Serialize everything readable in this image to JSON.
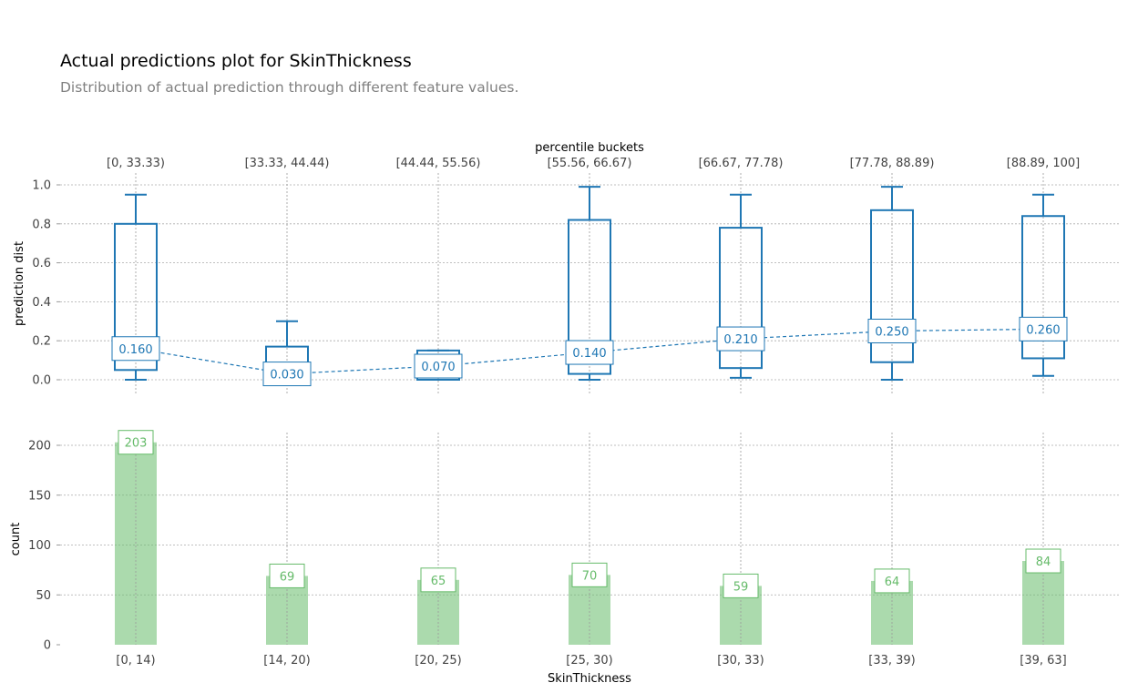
{
  "title": "Actual predictions plot for SkinThickness",
  "subtitle": "Distribution of actual prediction through different feature values.",
  "chart_data": [
    {
      "type": "box",
      "top_xlabel": "percentile buckets",
      "ylabel": "prediction dist",
      "ylim": [
        -0.05,
        1.05
      ],
      "yticks": [
        0.0,
        0.2,
        0.4,
        0.6,
        0.8,
        1.0
      ],
      "categories": [
        "[0, 33.33)",
        "[33.33, 44.44)",
        "[44.44, 55.56)",
        "[55.56, 66.67)",
        "[66.67, 77.78)",
        "[77.78, 88.89)",
        "[88.89, 100]"
      ],
      "boxes": [
        {
          "whislo": 0.0,
          "q1": 0.05,
          "med": 0.16,
          "q3": 0.8,
          "whishi": 0.95
        },
        {
          "whislo": 0.0,
          "q1": 0.0,
          "med": 0.03,
          "q3": 0.17,
          "whishi": 0.3
        },
        {
          "whislo": 0.0,
          "q1": 0.0,
          "med": 0.07,
          "q3": 0.15,
          "whishi": 0.15
        },
        {
          "whislo": 0.0,
          "q1": 0.03,
          "med": 0.14,
          "q3": 0.82,
          "whishi": 0.99
        },
        {
          "whislo": 0.01,
          "q1": 0.06,
          "med": 0.21,
          "q3": 0.78,
          "whishi": 0.95
        },
        {
          "whislo": 0.0,
          "q1": 0.09,
          "med": 0.25,
          "q3": 0.87,
          "whishi": 0.99
        },
        {
          "whislo": 0.02,
          "q1": 0.11,
          "med": 0.26,
          "q3": 0.84,
          "whishi": 0.95
        }
      ],
      "mean_labels": [
        "0.160",
        "0.030",
        "0.070",
        "0.140",
        "0.210",
        "0.250",
        "0.260"
      ],
      "grid": true,
      "color": "#1f77b4"
    },
    {
      "type": "bar",
      "xlabel": "SkinThickness",
      "ylabel": "count",
      "ylim": [
        0,
        214
      ],
      "yticks": [
        0,
        50,
        100,
        150,
        200
      ],
      "categories": [
        "[0, 14)",
        "[14, 20)",
        "[20, 25)",
        "[25, 30)",
        "[30, 33)",
        "[33, 39)",
        "[39, 63]"
      ],
      "values": [
        203,
        69,
        65,
        70,
        59,
        64,
        84
      ],
      "grid": true,
      "color": "#66bb6a"
    }
  ]
}
